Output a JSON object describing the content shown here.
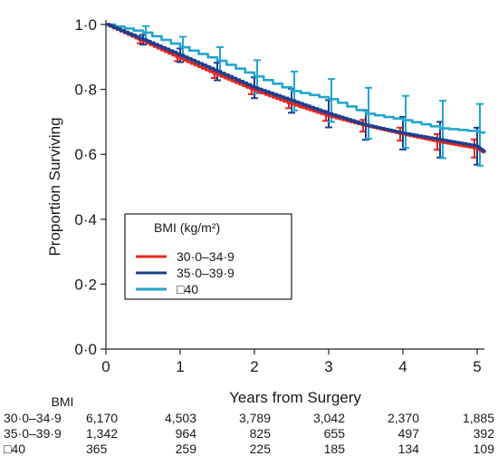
{
  "chart_data": {
    "type": "line",
    "xlabel": "Years from Surgery",
    "ylabel": "Proportion Surviving",
    "xlim": [
      0,
      5
    ],
    "ylim": [
      0,
      1
    ],
    "x_ticks": [
      "0",
      "1",
      "2",
      "3",
      "4",
      "5"
    ],
    "y_ticks": [
      "0·0",
      "0·2",
      "0·4",
      "0·6",
      "0·8",
      "1·0"
    ],
    "legend": {
      "title": "BMI (kg/m²)",
      "placement": "lower-left",
      "entries": [
        "30·0–34·9",
        "35·0–39·9",
        "□40"
      ]
    },
    "series": [
      {
        "name": "30·0–34·9",
        "color": "#e8261d",
        "x": [
          0,
          0.5,
          1,
          1.5,
          2,
          2.5,
          3,
          3.5,
          4,
          4.5,
          5,
          5.1
        ],
        "y": [
          1.0,
          0.948,
          0.895,
          0.845,
          0.797,
          0.755,
          0.718,
          0.688,
          0.662,
          0.638,
          0.618,
          0.605
        ],
        "ci_x": [
          0.5,
          1,
          1.5,
          2,
          2.5,
          3,
          3.5,
          4,
          4.5,
          5
        ],
        "ci_low": [
          0.942,
          0.887,
          0.835,
          0.785,
          0.742,
          0.703,
          0.67,
          0.642,
          0.614,
          0.59
        ],
        "ci_high": [
          0.955,
          0.904,
          0.855,
          0.809,
          0.768,
          0.733,
          0.706,
          0.682,
          0.662,
          0.646
        ]
      },
      {
        "name": "35·0–39·9",
        "color": "#1d3f8f",
        "x": [
          0,
          0.5,
          1,
          1.5,
          2,
          2.5,
          3,
          3.5,
          4,
          4.5,
          5,
          5.1
        ],
        "y": [
          1.0,
          0.953,
          0.905,
          0.855,
          0.805,
          0.765,
          0.725,
          0.69,
          0.665,
          0.645,
          0.625,
          0.608
        ],
        "ci_x": [
          0.5,
          1,
          1.5,
          2,
          2.5,
          3,
          3.5,
          4,
          4.5,
          5
        ],
        "ci_low": [
          0.938,
          0.884,
          0.828,
          0.773,
          0.728,
          0.683,
          0.645,
          0.615,
          0.59,
          0.568
        ],
        "ci_high": [
          0.968,
          0.926,
          0.882,
          0.837,
          0.802,
          0.767,
          0.735,
          0.715,
          0.7,
          0.682
        ]
      },
      {
        "name": "□40",
        "color": "#22a6cf",
        "x": [
          0,
          0.5,
          1,
          1.5,
          2,
          2.5,
          3,
          3.5,
          4,
          4.5,
          5,
          5.1
        ],
        "y": [
          1.0,
          0.975,
          0.93,
          0.888,
          0.84,
          0.795,
          0.77,
          0.725,
          0.705,
          0.68,
          0.67,
          0.665
        ],
        "ci_x": [
          0.5,
          1,
          1.5,
          2,
          2.5,
          3,
          3.5,
          4,
          4.5,
          5
        ],
        "ci_low": [
          0.952,
          0.897,
          0.845,
          0.788,
          0.735,
          0.7,
          0.648,
          0.62,
          0.588,
          0.565
        ],
        "ci_high": [
          0.995,
          0.962,
          0.93,
          0.89,
          0.855,
          0.832,
          0.805,
          0.78,
          0.765,
          0.755
        ]
      }
    ],
    "risk_table": {
      "header": "BMI",
      "x": [
        0,
        1,
        2,
        3,
        4,
        5
      ],
      "rows": [
        {
          "label": "30·0–34·9",
          "values": [
            "6,170",
            "4,503",
            "3,789",
            "3,042",
            "2,370",
            "1,885"
          ]
        },
        {
          "label": "35·0–39·9",
          "values": [
            "1,342",
            "964",
            "825",
            "655",
            "497",
            "392"
          ]
        },
        {
          "label": "□40",
          "values": [
            "365",
            "259",
            "225",
            "185",
            "134",
            "109"
          ]
        }
      ]
    }
  }
}
